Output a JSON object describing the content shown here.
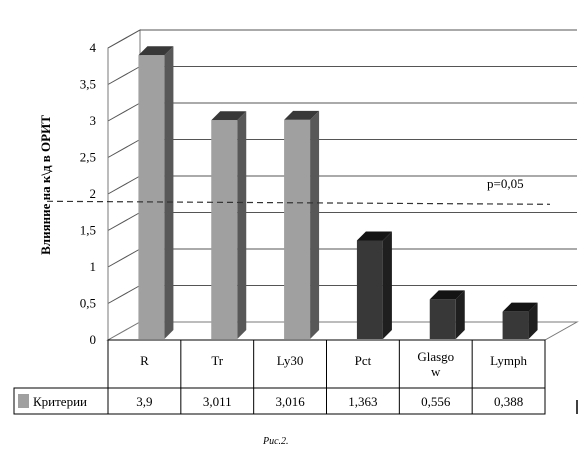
{
  "chart_data": {
    "type": "bar",
    "categories": [
      "R",
      "Tr",
      "Ly30",
      "Pct",
      "Glasgow",
      "Lymph"
    ],
    "category_display": [
      [
        "R"
      ],
      [
        "Tr"
      ],
      [
        "Ly30"
      ],
      [
        "Pct"
      ],
      [
        "Glasgo",
        "w"
      ],
      [
        "Lymph"
      ]
    ],
    "series": [
      {
        "name": "Критерии",
        "values": [
          3.9,
          3.011,
          3.016,
          1.363,
          0.556,
          0.388
        ],
        "value_labels": [
          "3,9",
          "3,011",
          "3,016",
          "1,363",
          "0,556",
          "0,388"
        ],
        "bar_colors": [
          "#a0a0a0",
          "#a0a0a0",
          "#a0a0a0",
          "#383838",
          "#383838",
          "#383838"
        ]
      }
    ],
    "title": "",
    "ylabel": "Влияние на к\\д в ОРИТ",
    "xlabel": "",
    "ylim": [
      0,
      4
    ],
    "yticks": [
      0,
      0.5,
      1,
      1.5,
      2,
      2.5,
      3,
      3.5,
      4
    ],
    "ytick_labels": [
      "0",
      "0,5",
      "1",
      "1,5",
      "2",
      "2,5",
      "3",
      "3,5",
      "4"
    ],
    "grid": true,
    "reference_line": {
      "value": 1.9,
      "label": "p=0,05",
      "style": "dashed"
    },
    "legend_in_table": true
  },
  "caption": "Рис.2."
}
